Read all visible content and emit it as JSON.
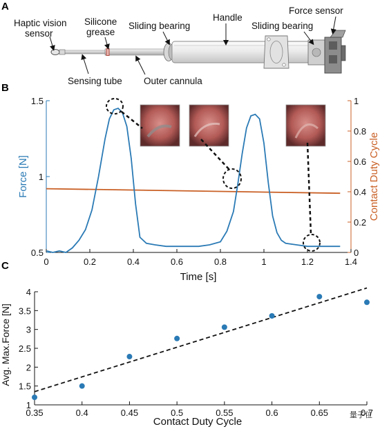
{
  "panel_a": {
    "panel_label": "A",
    "callouts": {
      "haptic_line1": "Haptic vision",
      "haptic_line2": "sensor",
      "silicone_line1": "Silicone",
      "silicone_line2": "grease",
      "bearing_left": "Sliding bearing",
      "handle": "Handle",
      "bearing_right": "Sliding bearing",
      "force_sensor": "Force sensor",
      "sensing_tube": "Sensing tube",
      "outer_cannula": "Outer cannula"
    }
  },
  "panel_b": {
    "panel_label": "B",
    "colors": {
      "force": "#2a7ab5",
      "duty": "#c95f24"
    }
  },
  "panel_c": {
    "panel_label": "C",
    "colors": {
      "points": "#2a7ab5",
      "fit": "#111111"
    }
  },
  "watermark": "量子位",
  "chart_data": [
    {
      "type": "line",
      "panel": "B",
      "xlabel": "Time [s]",
      "ylabel": "Force [N]",
      "y2label": "Contact Duty Cycle",
      "xlim": [
        0,
        1.4
      ],
      "ylim": [
        0.5,
        1.5
      ],
      "y2lim": [
        0,
        1
      ],
      "x_ticks": [
        "0",
        "0.2",
        "0.4",
        "0.6",
        "0.8",
        "1",
        "1.2",
        "1.4"
      ],
      "y_ticks": [
        "0.5",
        "1",
        "1.5"
      ],
      "y2_ticks": [
        "0",
        "0.2",
        "0.4",
        "0.6",
        "0.8",
        "1"
      ],
      "grid": false,
      "series": [
        {
          "name": "Force [N]",
          "axis": "left",
          "x": [
            0,
            0.03,
            0.06,
            0.09,
            0.12,
            0.15,
            0.18,
            0.21,
            0.24,
            0.27,
            0.29,
            0.31,
            0.33,
            0.35,
            0.37,
            0.39,
            0.41,
            0.43,
            0.46,
            0.5,
            0.55,
            0.6,
            0.65,
            0.7,
            0.75,
            0.8,
            0.83,
            0.86,
            0.88,
            0.9,
            0.92,
            0.94,
            0.96,
            0.98,
            1.0,
            1.02,
            1.04,
            1.06,
            1.08,
            1.1,
            1.15,
            1.2,
            1.25,
            1.3,
            1.35
          ],
          "y": [
            0.51,
            0.5,
            0.51,
            0.5,
            0.53,
            0.58,
            0.65,
            0.78,
            1.0,
            1.25,
            1.38,
            1.44,
            1.45,
            1.42,
            1.33,
            1.12,
            0.82,
            0.6,
            0.56,
            0.55,
            0.54,
            0.54,
            0.54,
            0.54,
            0.55,
            0.57,
            0.64,
            0.77,
            0.95,
            1.15,
            1.32,
            1.4,
            1.41,
            1.38,
            1.22,
            0.96,
            0.74,
            0.63,
            0.58,
            0.56,
            0.55,
            0.54,
            0.54,
            0.54,
            0.54
          ]
        },
        {
          "name": "Contact Duty Cycle",
          "axis": "right",
          "x": [
            0,
            1.35
          ],
          "y": [
            0.42,
            0.39
          ]
        }
      ]
    },
    {
      "type": "scatter",
      "panel": "C",
      "xlabel": "Contact Duty Cycle",
      "ylabel": "Avg. Max.Force [N]",
      "xlim": [
        0.35,
        0.7
      ],
      "ylim": [
        1,
        4
      ],
      "x_ticks": [
        "0.35",
        "0.4",
        "0.45",
        "0.5",
        "0.55",
        "0.6",
        "0.65",
        "0.7"
      ],
      "y_ticks": [
        "1",
        "1.5",
        "2",
        "2.5",
        "3",
        "3.5",
        "4"
      ],
      "grid": false,
      "series": [
        {
          "x": [
            0.35,
            0.4,
            0.45,
            0.5,
            0.55,
            0.6,
            0.65,
            0.7
          ],
          "y": [
            1.2,
            1.5,
            2.28,
            2.76,
            3.06,
            3.36,
            3.87,
            3.72
          ]
        }
      ],
      "fit_line": {
        "x": [
          0.35,
          0.7
        ],
        "y": [
          1.35,
          4.1
        ]
      }
    }
  ]
}
